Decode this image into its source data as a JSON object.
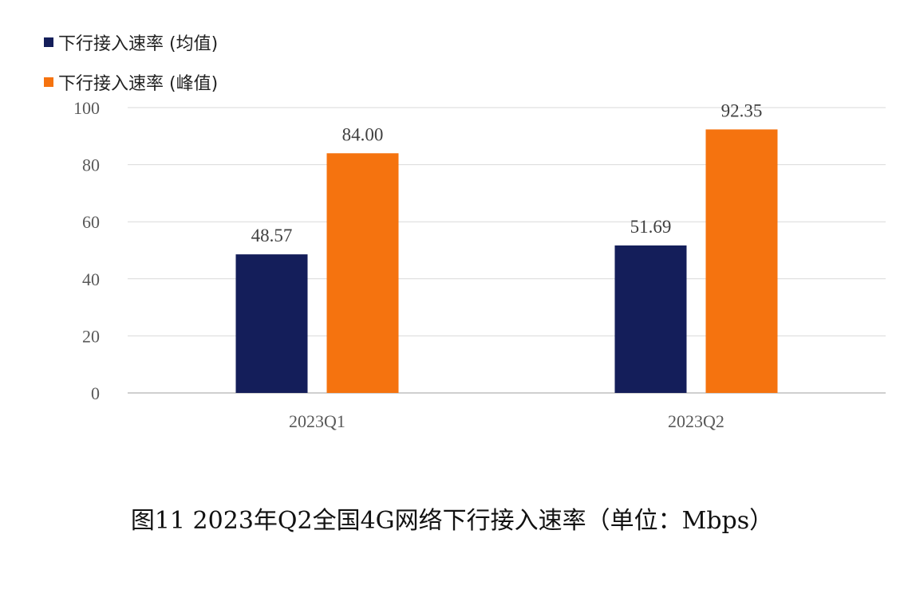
{
  "chart_data": {
    "type": "bar",
    "categories": [
      "2023Q1",
      "2023Q2"
    ],
    "series": [
      {
        "name": "下行接入速率 (均值)",
        "values": [
          48.57,
          51.69
        ],
        "labels": [
          "48.57",
          "51.69"
        ],
        "color": "#141E5A"
      },
      {
        "name": "下行接入速率 (峰值)",
        "values": [
          84.0,
          92.35
        ],
        "labels": [
          "84.00",
          "92.35"
        ],
        "color": "#F5730F"
      }
    ],
    "ylim": [
      0,
      100
    ],
    "yticks": [
      0,
      20,
      40,
      60,
      80,
      100
    ],
    "ytick_labels": [
      "0",
      "20",
      "40",
      "60",
      "80",
      "100"
    ],
    "grid": true,
    "legend": "top-left",
    "caption": "图11 2023年Q2全国4G网络下行接入速率（单位：Mbps）"
  }
}
